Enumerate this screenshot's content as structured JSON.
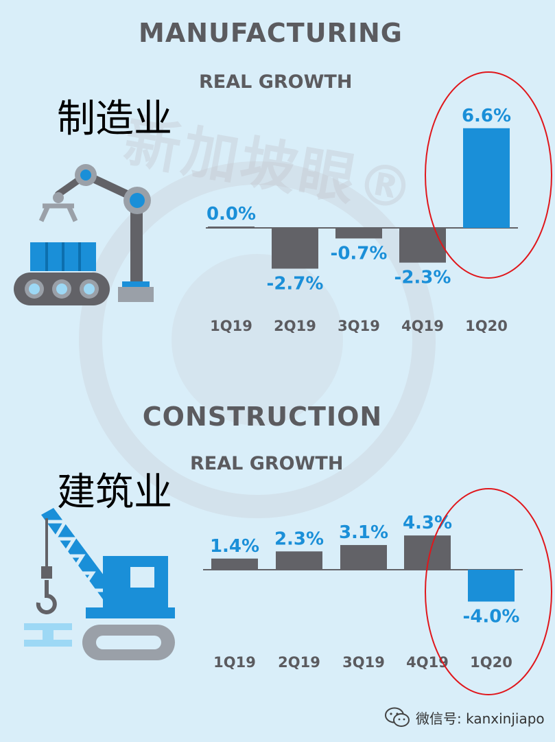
{
  "watermark": {
    "text": "新加坡眼®"
  },
  "sections": [
    {
      "id": "manu",
      "title": "MANUFACTURING",
      "subtitle": "REAL GROWTH",
      "chinese_label": "制造业"
    },
    {
      "id": "cons",
      "title": "CONSTRUCTION",
      "subtitle": "REAL GROWTH",
      "chinese_label": "建筑业"
    }
  ],
  "chart_data": [
    {
      "type": "bar",
      "title": "MANUFACTURING",
      "subtitle": "REAL GROWTH",
      "categories": [
        "1Q19",
        "2Q19",
        "3Q19",
        "4Q19",
        "1Q20"
      ],
      "values": [
        0.0,
        -2.7,
        -0.7,
        -2.3,
        6.6
      ],
      "labels": [
        "0.0%",
        "-2.7%",
        "-0.7%",
        "-2.3%",
        "6.6%"
      ],
      "highlight_index": 4,
      "colors": {
        "normal": "#626267",
        "highlight": "#1a8fd8",
        "label": "#1a8fd8",
        "circle": "#e0161b"
      }
    },
    {
      "type": "bar",
      "title": "CONSTRUCTION",
      "subtitle": "REAL GROWTH",
      "categories": [
        "1Q19",
        "2Q19",
        "3Q19",
        "4Q19",
        "1Q20"
      ],
      "values": [
        1.4,
        2.3,
        3.1,
        4.3,
        -4.0
      ],
      "labels": [
        "1.4%",
        "2.3%",
        "3.1%",
        "4.3%",
        "-4.0%"
      ],
      "highlight_index": 4,
      "colors": {
        "normal": "#626267",
        "highlight": "#1a8fd8",
        "label": "#1a8fd8",
        "circle": "#e0161b"
      }
    }
  ],
  "footer": {
    "wechat_label": "微信号: kanxinjiapo",
    "icon": "wechat-icon"
  }
}
